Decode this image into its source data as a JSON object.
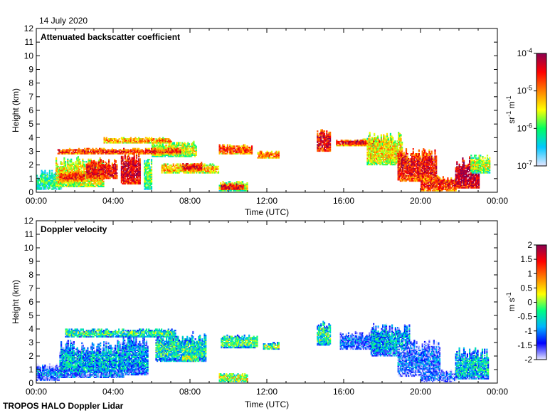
{
  "figure": {
    "date": "14 July 2020",
    "footer": "TROPOS HALO Doppler Lidar"
  },
  "chart_data": [
    {
      "type": "heatmap",
      "title": "Attenuated backscatter coefficient",
      "xlabel": "Time (UTC)",
      "ylabel": "Height (km)",
      "x_ticks": [
        "00:00",
        "04:00",
        "08:00",
        "12:00",
        "16:00",
        "20:00",
        "00:00"
      ],
      "y_ticks": [
        "0",
        "1",
        "2",
        "3",
        "4",
        "5",
        "6",
        "7",
        "8",
        "9",
        "10",
        "11",
        "12"
      ],
      "xlim_hours": [
        0,
        24
      ],
      "ylim_km": [
        0,
        12
      ],
      "colorbar": {
        "label": "sr-1 m-1",
        "scale": "log",
        "range": [
          1e-07,
          0.0001
        ],
        "tick_labels": [
          "10^-7",
          "10^-6",
          "10^-5",
          "10^-4"
        ],
        "colormap": [
          "#e6e6ff",
          "#00c8ff",
          "#00ff60",
          "#ffff00",
          "#ff8000",
          "#ff0000",
          "#8b0050"
        ]
      },
      "features": [
        {
          "t0": 0.0,
          "t1": 1.3,
          "z0": 0.2,
          "z1": 1.6,
          "level": 0.3
        },
        {
          "t0": 1.0,
          "t1": 3.5,
          "z0": 0.4,
          "z1": 2.6,
          "level": 0.55
        },
        {
          "t0": 1.2,
          "t1": 2.5,
          "z0": 0.8,
          "z1": 1.5,
          "level": 0.8
        },
        {
          "t0": 2.6,
          "t1": 4.2,
          "z0": 1.0,
          "z1": 2.4,
          "level": 0.85
        },
        {
          "t0": 4.4,
          "t1": 5.4,
          "z0": 0.6,
          "z1": 3.0,
          "level": 0.9
        },
        {
          "t0": 5.6,
          "t1": 6.0,
          "z0": 0.2,
          "z1": 2.4,
          "level": 0.4
        },
        {
          "t0": 6.0,
          "t1": 8.3,
          "z0": 2.6,
          "z1": 3.7,
          "level": 0.5
        },
        {
          "t0": 1.1,
          "t1": 7.5,
          "z0": 2.8,
          "z1": 3.2,
          "level": 0.8
        },
        {
          "t0": 3.5,
          "t1": 7.0,
          "z0": 3.6,
          "z1": 4.0,
          "level": 0.65
        },
        {
          "t0": 6.5,
          "t1": 9.5,
          "z0": 1.4,
          "z1": 2.1,
          "level": 0.6
        },
        {
          "t0": 7.6,
          "t1": 8.6,
          "z0": 1.6,
          "z1": 2.2,
          "level": 0.85
        },
        {
          "t0": 9.5,
          "t1": 11.0,
          "z0": 0.1,
          "z1": 0.8,
          "level": 0.5
        },
        {
          "t0": 9.6,
          "t1": 10.8,
          "z0": 0.2,
          "z1": 0.6,
          "level": 0.9
        },
        {
          "t0": 9.5,
          "t1": 11.2,
          "z0": 2.8,
          "z1": 3.5,
          "level": 0.75
        },
        {
          "t0": 11.5,
          "t1": 12.6,
          "z0": 2.5,
          "z1": 3.0,
          "level": 0.7
        },
        {
          "t0": 14.6,
          "t1": 15.3,
          "z0": 3.0,
          "z1": 4.6,
          "level": 0.85
        },
        {
          "t0": 15.6,
          "t1": 18.2,
          "z0": 3.4,
          "z1": 3.9,
          "level": 0.75
        },
        {
          "t0": 15.9,
          "t1": 17.8,
          "z0": 3.5,
          "z1": 3.8,
          "level": 0.9
        },
        {
          "t0": 17.2,
          "t1": 19.0,
          "z0": 2.0,
          "z1": 4.4,
          "level": 0.55
        },
        {
          "t0": 18.8,
          "t1": 20.8,
          "z0": 0.8,
          "z1": 3.2,
          "level": 0.85
        },
        {
          "t0": 20.0,
          "t1": 21.8,
          "z0": 0.1,
          "z1": 1.2,
          "level": 0.8
        },
        {
          "t0": 21.8,
          "t1": 23.0,
          "z0": 0.3,
          "z1": 2.6,
          "level": 0.95
        },
        {
          "t0": 22.6,
          "t1": 23.6,
          "z0": 1.4,
          "z1": 2.8,
          "level": 0.45
        }
      ]
    },
    {
      "type": "heatmap",
      "title": "Doppler velocity",
      "xlabel": "Time (UTC)",
      "ylabel": "Height (km)",
      "x_ticks": [
        "00:00",
        "04:00",
        "08:00",
        "12:00",
        "16:00",
        "20:00",
        "00:00"
      ],
      "y_ticks": [
        "0",
        "1",
        "2",
        "3",
        "4",
        "5",
        "6",
        "7",
        "8",
        "9",
        "10",
        "11",
        "12"
      ],
      "xlim_hours": [
        0,
        24
      ],
      "ylim_km": [
        0,
        12
      ],
      "colorbar": {
        "label": "m s-1",
        "scale": "linear",
        "range": [
          -2,
          2
        ],
        "tick_labels": [
          "-2",
          "-1.5",
          "-1",
          "-0.5",
          "0",
          "0.5",
          "1",
          "1.5",
          "2"
        ],
        "colormap": [
          "#e6e6ff",
          "#0000ff",
          "#00b4ff",
          "#00ff80",
          "#ffff00",
          "#ff8000",
          "#ff0000",
          "#8b0050"
        ]
      },
      "features": [
        {
          "t0": 0.0,
          "t1": 1.2,
          "z0": 0.2,
          "z1": 1.4,
          "level": 0.22
        },
        {
          "t0": 1.2,
          "t1": 4.5,
          "z0": 0.4,
          "z1": 3.2,
          "level": 0.3
        },
        {
          "t0": 4.5,
          "t1": 5.8,
          "z0": 0.6,
          "z1": 3.8,
          "level": 0.28
        },
        {
          "t0": 6.2,
          "t1": 8.8,
          "z0": 1.6,
          "z1": 3.8,
          "level": 0.38
        },
        {
          "t0": 1.5,
          "t1": 7.2,
          "z0": 3.4,
          "z1": 4.0,
          "level": 0.42
        },
        {
          "t0": 7.6,
          "t1": 8.4,
          "z0": 1.6,
          "z1": 2.2,
          "level": 0.5
        },
        {
          "t0": 9.5,
          "t1": 11.0,
          "z0": 0.1,
          "z1": 0.7,
          "level": 0.55
        },
        {
          "t0": 9.6,
          "t1": 11.5,
          "z0": 2.6,
          "z1": 3.6,
          "level": 0.45
        },
        {
          "t0": 11.8,
          "t1": 12.6,
          "z0": 2.5,
          "z1": 3.0,
          "level": 0.48
        },
        {
          "t0": 14.6,
          "t1": 15.3,
          "z0": 2.8,
          "z1": 4.6,
          "level": 0.4
        },
        {
          "t0": 15.8,
          "t1": 17.8,
          "z0": 2.5,
          "z1": 3.8,
          "level": 0.2
        },
        {
          "t0": 17.4,
          "t1": 19.4,
          "z0": 2.0,
          "z1": 4.4,
          "level": 0.3
        },
        {
          "t0": 18.8,
          "t1": 21.0,
          "z0": 0.5,
          "z1": 3.2,
          "level": 0.18
        },
        {
          "t0": 20.0,
          "t1": 21.8,
          "z0": 0.1,
          "z1": 1.0,
          "level": 0.16
        },
        {
          "t0": 21.8,
          "t1": 23.5,
          "z0": 0.3,
          "z1": 2.6,
          "level": 0.34
        }
      ]
    }
  ]
}
